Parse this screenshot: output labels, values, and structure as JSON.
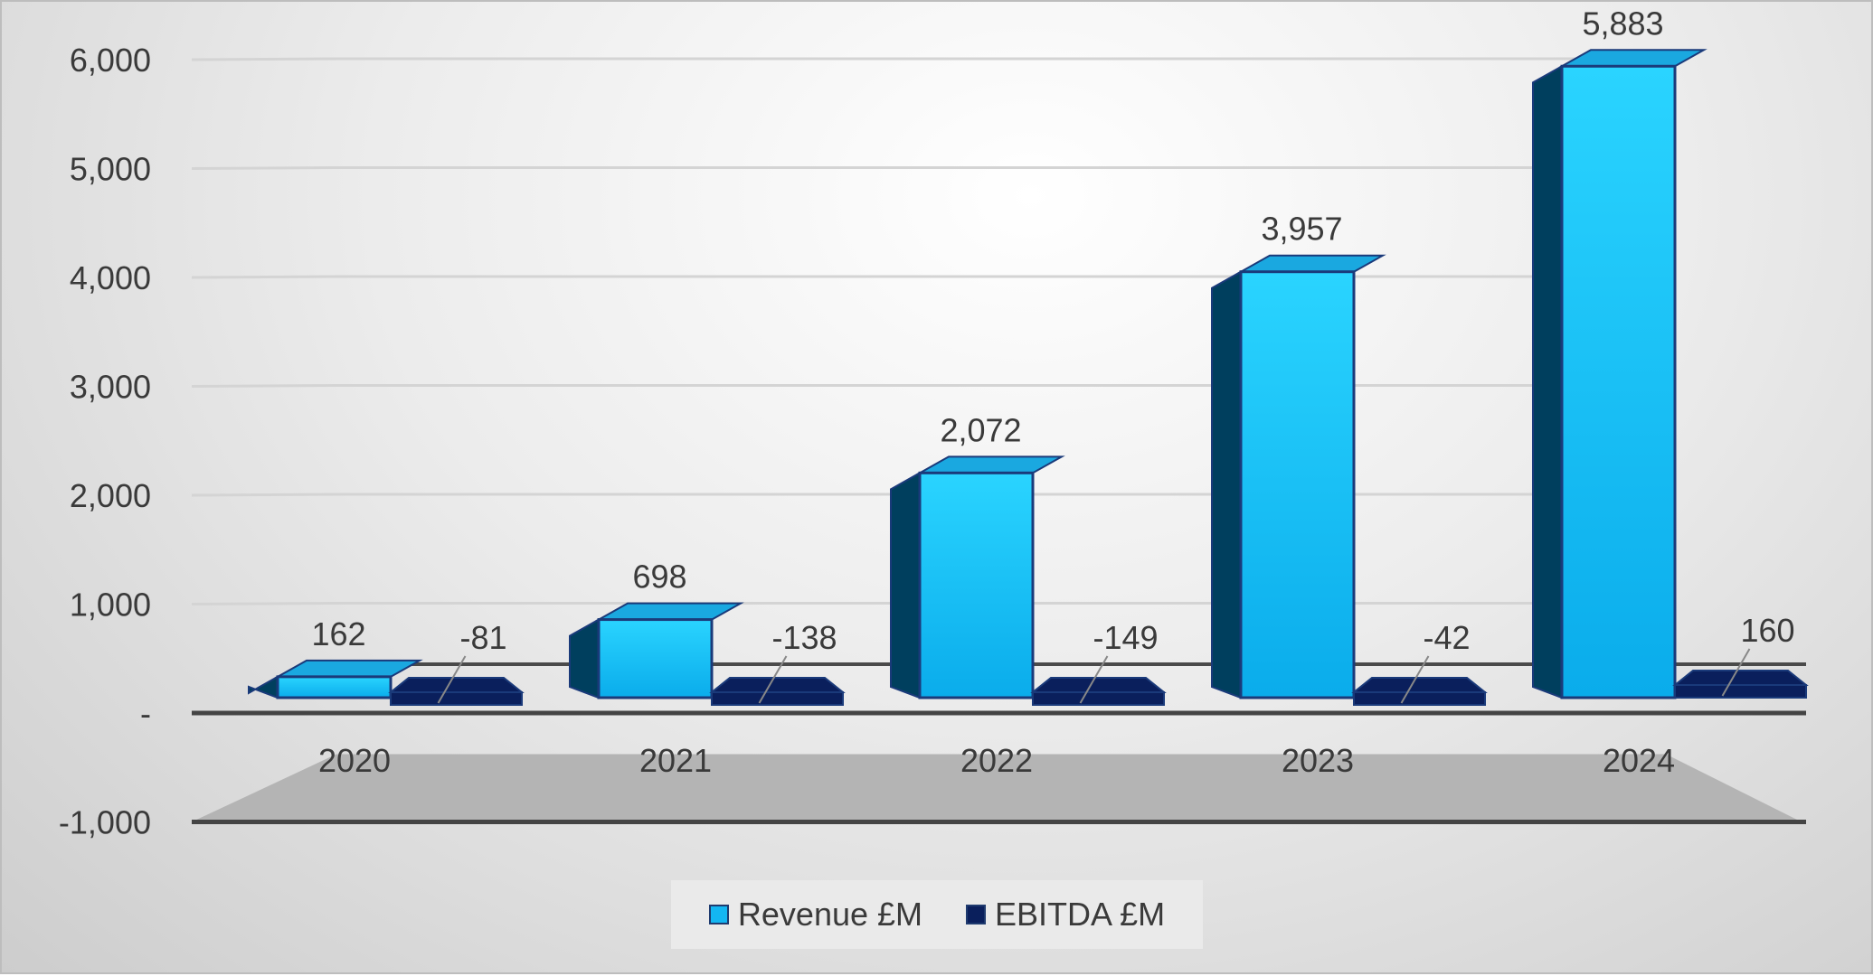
{
  "chart_data": {
    "type": "bar",
    "categories": [
      "2020",
      "2021",
      "2022",
      "2023",
      "2024"
    ],
    "series": [
      {
        "name": "Revenue £M",
        "values": [
          162,
          698,
          2072,
          3957,
          5883
        ],
        "labels": [
          "162",
          "698",
          "2,072",
          "3,957",
          "5,883"
        ],
        "color": "#13b6f2"
      },
      {
        "name": "EBITDA £M",
        "values": [
          -81,
          -138,
          -149,
          -42,
          160
        ],
        "labels": [
          "-81",
          "-138",
          "-149",
          "-42",
          "160"
        ],
        "color": "#0a1f5c"
      }
    ],
    "ylim": [
      -1000,
      6000
    ],
    "yticks": [
      {
        "value": 6000,
        "label": "6,000"
      },
      {
        "value": 5000,
        "label": "5,000"
      },
      {
        "value": 4000,
        "label": "4,000"
      },
      {
        "value": 3000,
        "label": "3,000"
      },
      {
        "value": 2000,
        "label": "2,000"
      },
      {
        "value": 1000,
        "label": "1,000"
      },
      {
        "value": 0,
        "label": "-"
      },
      {
        "value": -1000,
        "label": "-1,000"
      }
    ],
    "grid": true,
    "legend_position": "bottom",
    "title": "",
    "xlabel": "",
    "ylabel": ""
  }
}
